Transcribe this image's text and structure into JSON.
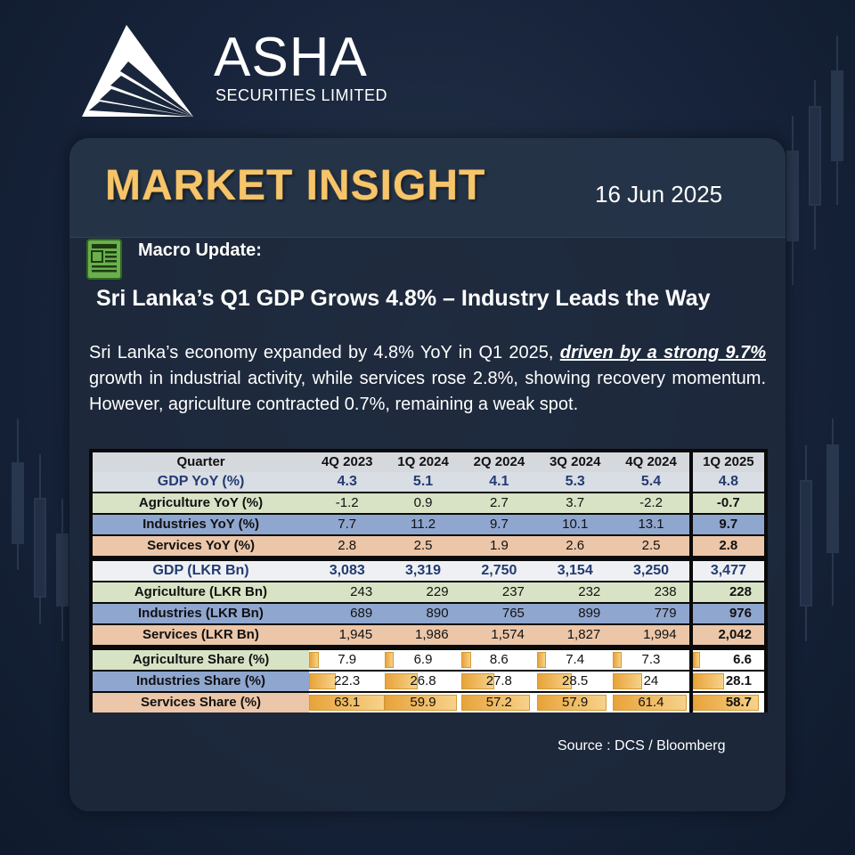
{
  "brand": {
    "name": "ASHA",
    "subtitle": "SECURITIES LIMITED"
  },
  "header": {
    "title": "MARKET INSIGHT",
    "date": "16 Jun 2025"
  },
  "section_label": "Macro Update:",
  "headline": "Sri Lanka’s Q1 GDP Grows 4.8% – Industry Leads the Way",
  "body": {
    "before": "Sri Lanka’s economy expanded by 4.8% YoY in Q1 2025, ",
    "emphasis": "driven by a strong 9.7%",
    "after": " growth in industrial activity, while services rose 2.8%, showing recovery momentum. However, agriculture contracted 0.7%, remaining a weak spot."
  },
  "table": {
    "columns": [
      "Quarter",
      "4Q 2023",
      "1Q 2024",
      "2Q 2024",
      "3Q 2024",
      "4Q 2024",
      "1Q 2025"
    ],
    "rows": [
      [
        "GDP YoY (%)",
        "4.3",
        "5.1",
        "4.1",
        "5.3",
        "5.4",
        "4.8"
      ],
      [
        "Agriculture YoY (%)",
        "-1.2",
        "0.9",
        "2.7",
        "3.7",
        "-2.2",
        "-0.7"
      ],
      [
        "Industries YoY (%)",
        "7.7",
        "11.2",
        "9.7",
        "10.1",
        "13.1",
        "9.7"
      ],
      [
        "Services YoY (%)",
        "2.8",
        "2.5",
        "1.9",
        "2.6",
        "2.5",
        "2.8"
      ],
      [
        "GDP (LKR Bn)",
        "3,083",
        "3,319",
        "2,750",
        "3,154",
        "3,250",
        "3,477"
      ],
      [
        "Agriculture (LKR Bn)",
        "243",
        "229",
        "237",
        "232",
        "238",
        "228"
      ],
      [
        "Industries (LKR Bn)",
        "689",
        "890",
        "765",
        "899",
        "779",
        "976"
      ],
      [
        "Services (LKR Bn)",
        "1,945",
        "1,986",
        "1,574",
        "1,827",
        "1,994",
        "2,042"
      ],
      [
        "Agriculture Share (%)",
        "7.9",
        "6.9",
        "8.6",
        "7.4",
        "7.3",
        "6.6"
      ],
      [
        "Industries Share (%)",
        "22.3",
        "26.8",
        "27.8",
        "28.5",
        "24",
        "28.1"
      ],
      [
        "Services Share (%)",
        "63.1",
        "59.9",
        "57.2",
        "57.9",
        "61.4",
        "58.7"
      ]
    ]
  },
  "source": "Source : DCS / Bloomberg",
  "colors": {
    "title_gold": "#f6c46a",
    "navy_text": "#233b72",
    "bar_orange": "#e8a33a"
  },
  "icons": {
    "logo": "triangle-rays-logo",
    "section": "newspaper-icon"
  }
}
